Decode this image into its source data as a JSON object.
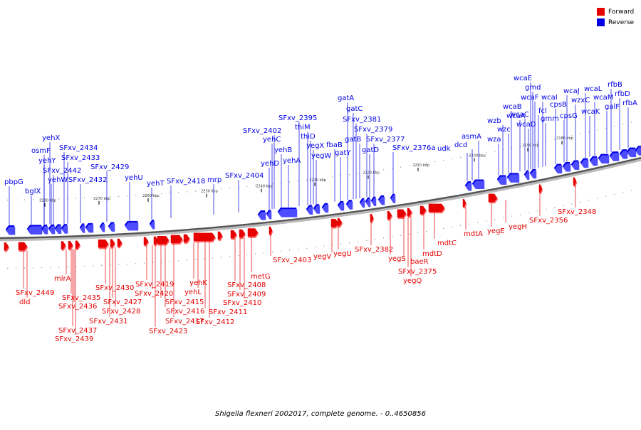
{
  "legend": {
    "forward_label": "Forward",
    "reverse_label": "Reverse",
    "forward_color": "#e60000",
    "reverse_color": "#0000e6"
  },
  "caption": "Shigella flexneri 2002017, complete genome. - 0..4650856",
  "scale_ticks": [
    "2180 kbp",
    "2190 kbp",
    "2200 kbp",
    "2210 kbp",
    "2220 kbp",
    "2230 kbp",
    "2240 kbp",
    "2250 kbp",
    "2260 kbp",
    "2270 kbp",
    "2280 kbp"
  ],
  "reverse_genes": [
    "pbpG",
    "bglX",
    "yehY",
    "yehW",
    "osmF",
    "yehX",
    "SFxv_2442",
    "SFxv_2434",
    "SFxv_2433",
    "SFxv_2432",
    "SFxv_2429",
    "yehU",
    "yehT",
    "SFxv_2418",
    "mrp",
    "SFxv_2404",
    "yehD",
    "yehC",
    "SFxv_2402",
    "yehB",
    "yehA",
    "SFxv_2395",
    "thiM",
    "thiD",
    "yegX",
    "yegW",
    "fbaB",
    "gatY",
    "gatA",
    "gatC",
    "SFxv_2381",
    "gatB",
    "SFxv_2379",
    "gatD",
    "SFxv_2377",
    "SFxv_2376a",
    "udk",
    "dcd",
    "asmA",
    "wza",
    "wzb",
    "wzc",
    "wcaB",
    "wcaA",
    "wcaC",
    "wcaD",
    "wcaE",
    "gmd",
    "wcaF",
    "fcl",
    "wcaI",
    "gmm",
    "cpsB",
    "cpsG",
    "wcaJ",
    "wzxC",
    "wcaL",
    "wcaK",
    "wcaM",
    "galF",
    "rfbB",
    "rfbD",
    "rfbA"
  ],
  "forward_genes": [
    "SFxv_2449",
    "dld",
    "mlrA",
    "SFxv_2435",
    "SFxv_2436",
    "SFxv_2437",
    "SFxv_2439",
    "SFxv_2430",
    "SFxv_2427",
    "SFxv_2428",
    "SFxv_2431",
    "SFxv_2419",
    "SFxv_2420",
    "SFxv_2415",
    "SFxv_2416",
    "SFxv_2417",
    "SFxv_2423",
    "yehK",
    "yehL",
    "SFxv_2411",
    "SFxv_2412",
    "SFxv_2408",
    "SFxv_2409",
    "SFxv_2410",
    "metG",
    "SFxv_2403",
    "yegV",
    "yegU",
    "SFxv_2382",
    "yegS",
    "baeR",
    "SFxv_2375",
    "yegQ",
    "mdtD",
    "mdtC",
    "mdtA",
    "yegE",
    "yegH",
    "SFxv_2356",
    "SFxv_2348"
  ]
}
